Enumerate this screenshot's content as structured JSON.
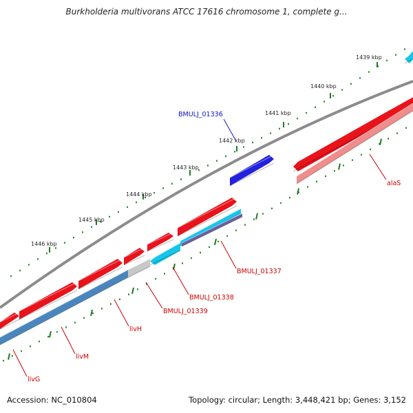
{
  "title": "Burkholderia multivorans ATCC 17616 chromosome 1, complete g...",
  "footer": {
    "accession": "Accession: NC_010804",
    "summary": "Topology: circular; Length: 3,448,421 bp; Genes: 3,152"
  },
  "colors": {
    "backbone": "#8c8c8c",
    "cds_forward": "#e8131b",
    "cds_reverse_steel": "#4a86bd",
    "cds_reverse_cyan": "#15c5ea",
    "cds_reverse_pink": "#f08c8c",
    "cds_grey": "#c8c8c8",
    "cds_reverse_other": "#2222dd",
    "ruler_dots": "#2e8b2e",
    "ruler_ticks": "#1f7a1f",
    "label_red": "#cc0000",
    "label_blue": "#1010cc"
  },
  "ruler_labels": [
    "1439 kbp",
    "1440 kbp",
    "1441 kbp",
    "1442 kbp",
    "1443 kbp",
    "1444 kbp",
    "1445 kbp",
    "1446 kbp"
  ],
  "genes": [
    {
      "name": "alaS",
      "color": "label_red"
    },
    {
      "name": "BMULJ_01336",
      "color": "label_blue"
    },
    {
      "name": "BMULJ_01337",
      "color": "label_red"
    },
    {
      "name": "BMULJ_01338",
      "color": "label_red"
    },
    {
      "name": "BMULJ_01339",
      "color": "label_red"
    },
    {
      "name": "livH",
      "color": "label_red"
    },
    {
      "name": "livM",
      "color": "label_red"
    },
    {
      "name": "livG",
      "color": "label_red"
    }
  ]
}
